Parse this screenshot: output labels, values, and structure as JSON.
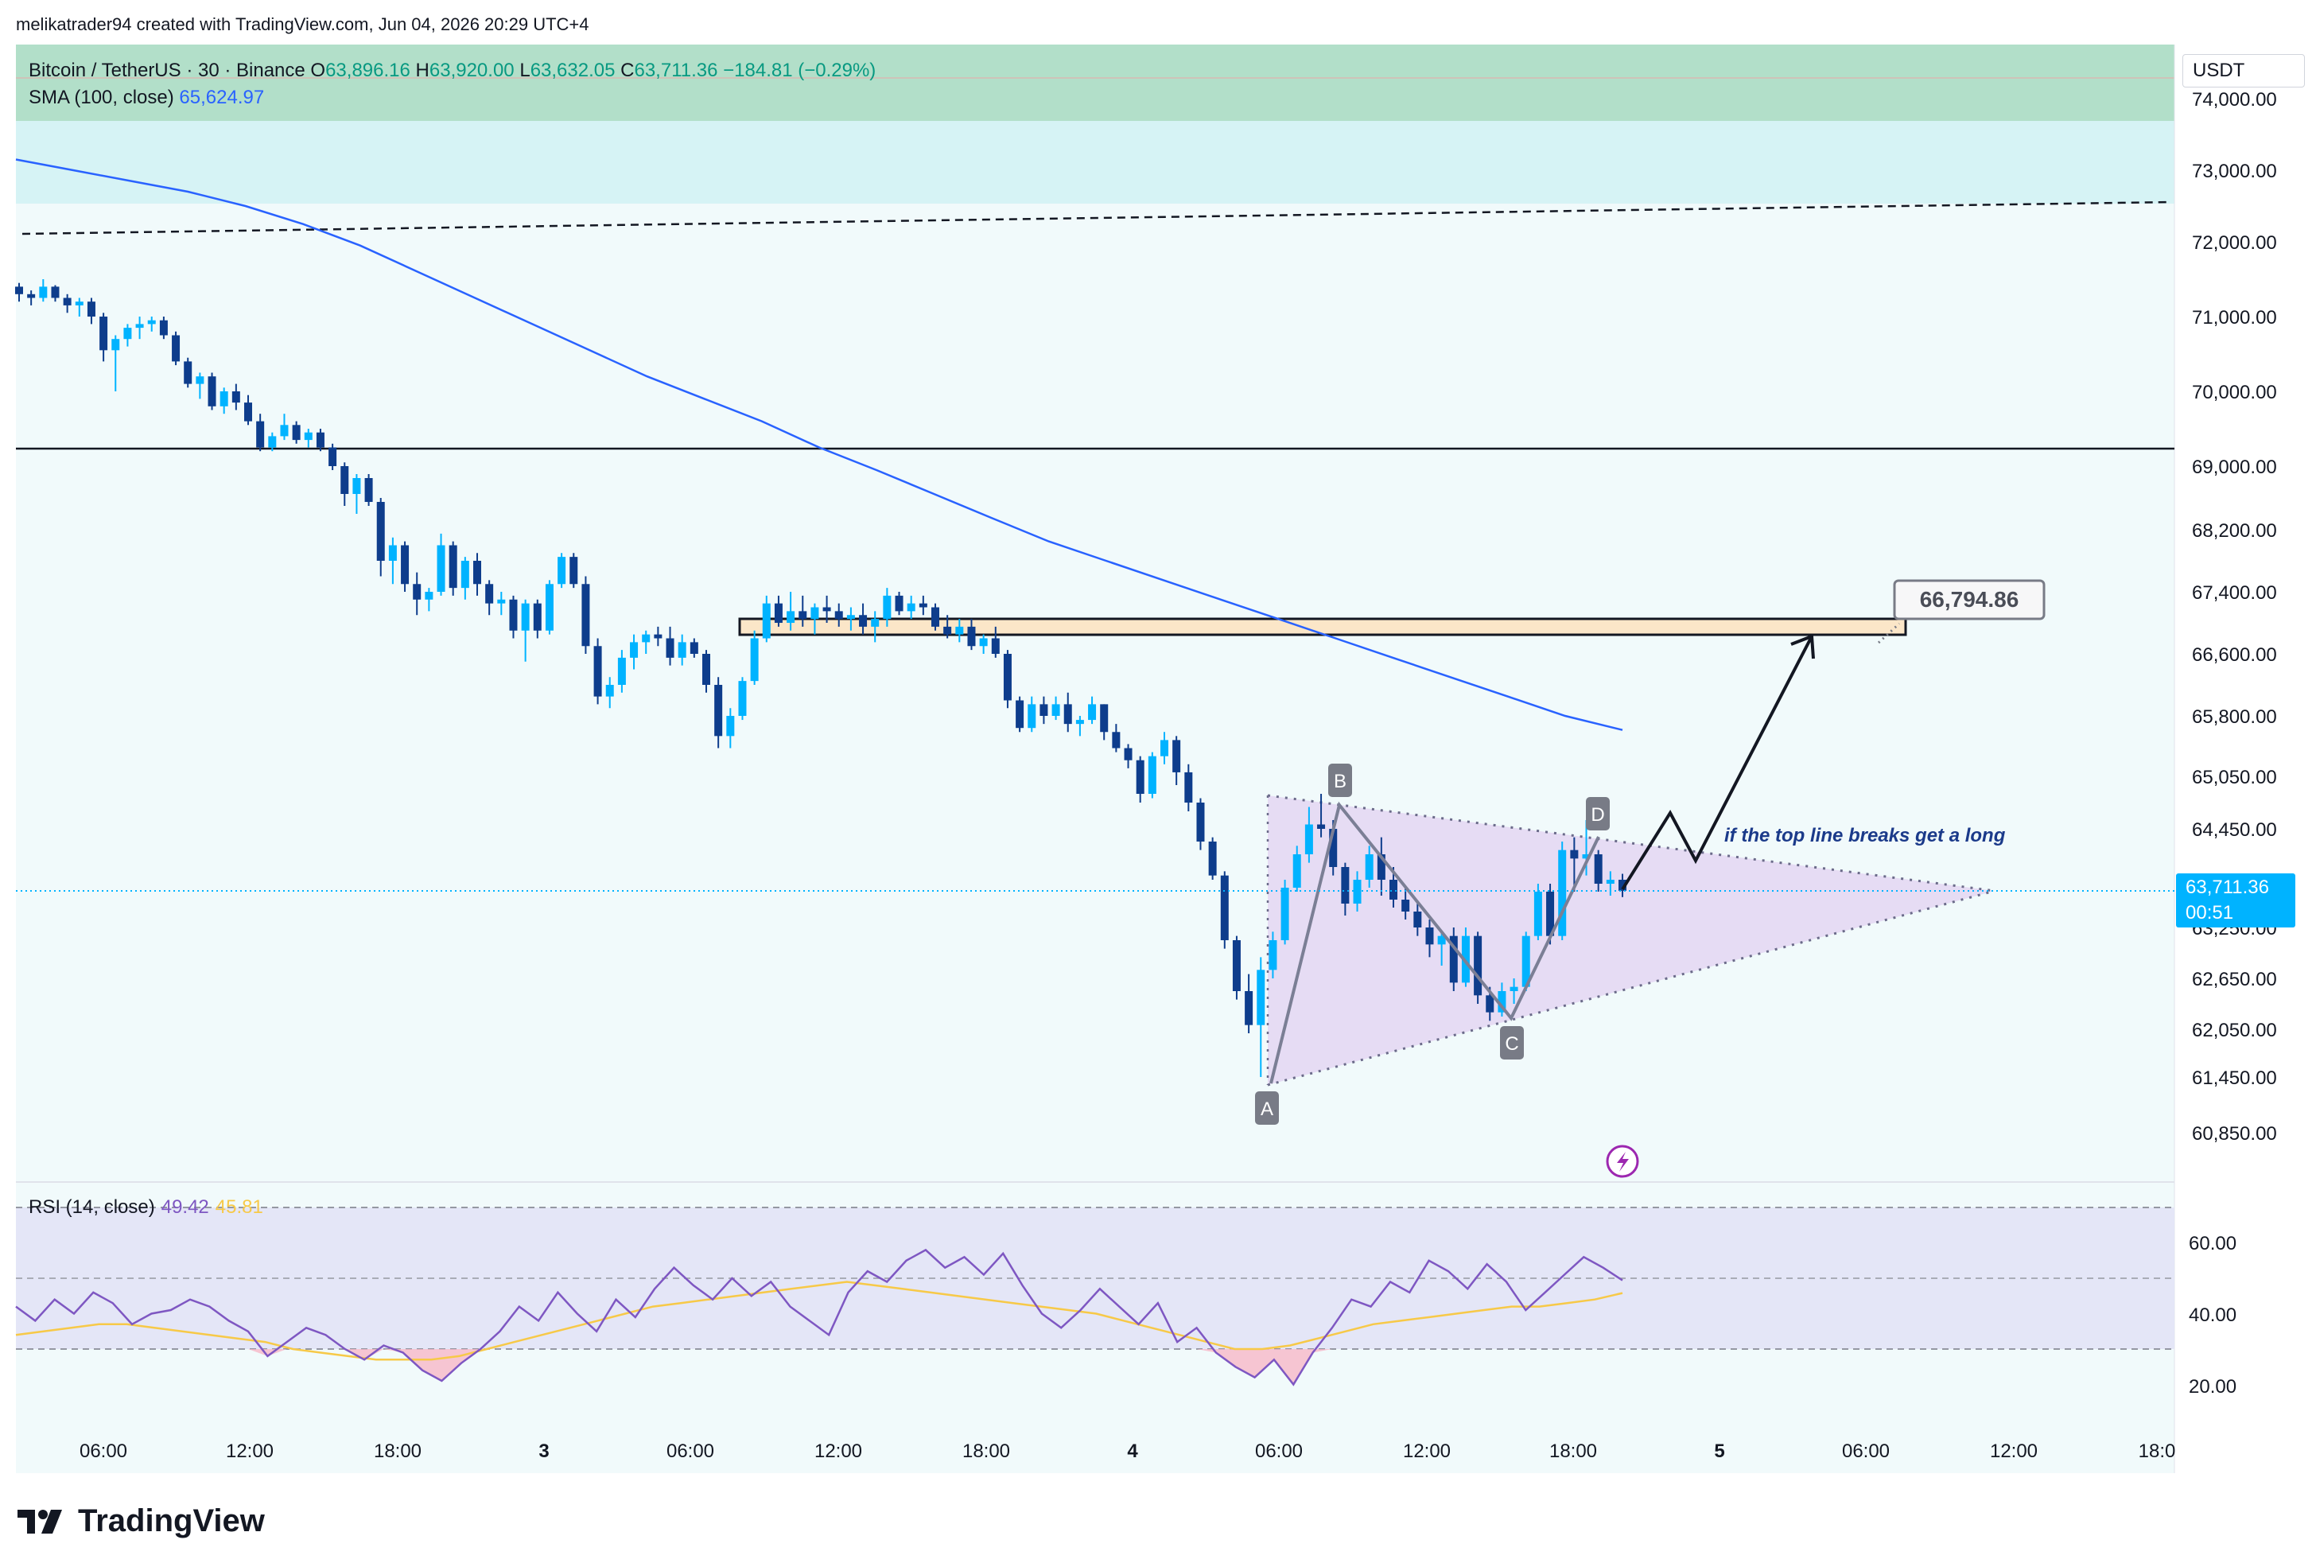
{
  "attribution": "melikatrader94 created with TradingView.com, Jun 04, 2026 20:29 UTC+4",
  "legend": {
    "symbol": "Bitcoin / TetherUS · 30 · Binance",
    "open_label": "O",
    "open": "63,896.16",
    "high_label": "H",
    "high": "63,920.00",
    "low_label": "L",
    "low": "63,632.05",
    "close_label": "C",
    "close": "63,711.36",
    "change": "−184.81 (−0.29%)",
    "sma_label": "SMA (100, close)",
    "sma_value": "65,624.97"
  },
  "currency": "USDT",
  "price_badge": {
    "price": "63,711.36",
    "countdown": "00:51"
  },
  "target_label": "66,794.86",
  "annotation": "if the top line breaks get a long",
  "wave_labels": [
    "A",
    "B",
    "C",
    "D"
  ],
  "rsi_legend": {
    "label": "RSI (14, close)",
    "rsi": "49.42",
    "ma": "45.81"
  },
  "footer": {
    "brand": "TradingView"
  },
  "colors": {
    "bull": "#00b3ff",
    "bear": "#0e3d8c",
    "sma": "#2962ff",
    "rsi": "#7e57c2",
    "rsi_ma": "#f7c948",
    "triangle": "#e4d6f2",
    "zone": "#fbe6c8",
    "top_band": "#b2dfc9",
    "sky_band": "#d6f3f5"
  },
  "chart_data": {
    "type": "candlestick",
    "price_axis_ticks": [
      "74,000.00",
      "73,000.00",
      "72,000.00",
      "71,000.00",
      "70,000.00",
      "69,000.00",
      "68,200.00",
      "67,400.00",
      "66,600.00",
      "65,800.00",
      "65,050.00",
      "64,450.00",
      "63,850.00",
      "63,250.00",
      "62,650.00",
      "62,050.00",
      "61,450.00",
      "60,850.00"
    ],
    "time_axis_ticks": [
      "06:00",
      "12:00",
      "18:00",
      "3",
      "06:00",
      "12:00",
      "18:00",
      "4",
      "06:00",
      "12:00",
      "18:00",
      "5",
      "06:00",
      "12:00",
      "18:0"
    ],
    "rsi_axis_ticks": [
      "60.00",
      "40.00",
      "20.00"
    ],
    "candles": [
      [
        71400,
        71450,
        71200,
        71300
      ],
      [
        71300,
        71350,
        71150,
        71250
      ],
      [
        71250,
        71500,
        71200,
        71400
      ],
      [
        71400,
        71420,
        71200,
        71250
      ],
      [
        71250,
        71300,
        71050,
        71150
      ],
      [
        71150,
        71250,
        71000,
        71200
      ],
      [
        71200,
        71250,
        70900,
        71000
      ],
      [
        71000,
        71050,
        70400,
        70550
      ],
      [
        70550,
        70750,
        70000,
        70700
      ],
      [
        70700,
        70900,
        70600,
        70850
      ],
      [
        70850,
        71000,
        70700,
        70900
      ],
      [
        70900,
        71000,
        70800,
        70950
      ],
      [
        70950,
        71000,
        70700,
        70750
      ],
      [
        70750,
        70800,
        70350,
        70400
      ],
      [
        70400,
        70450,
        70050,
        70100
      ],
      [
        70100,
        70250,
        69900,
        70200
      ],
      [
        70200,
        70250,
        69750,
        69800
      ],
      [
        69800,
        70050,
        69700,
        70000
      ],
      [
        70000,
        70100,
        69750,
        69850
      ],
      [
        69850,
        69950,
        69550,
        69600
      ],
      [
        69600,
        69700,
        69200,
        69250
      ],
      [
        69250,
        69450,
        69200,
        69400
      ],
      [
        69400,
        69700,
        69350,
        69550
      ],
      [
        69550,
        69600,
        69300,
        69350
      ],
      [
        69350,
        69500,
        69250,
        69450
      ],
      [
        69450,
        69500,
        69200,
        69250
      ],
      [
        69250,
        69300,
        68950,
        69000
      ],
      [
        69000,
        69050,
        68500,
        68650
      ],
      [
        68650,
        68900,
        68400,
        68850
      ],
      [
        68850,
        68900,
        68500,
        68550
      ],
      [
        68550,
        68600,
        67600,
        67800
      ],
      [
        67800,
        68100,
        67500,
        68000
      ],
      [
        68000,
        68050,
        67400,
        67500
      ],
      [
        67500,
        67650,
        67100,
        67300
      ],
      [
        67300,
        67450,
        67150,
        67400
      ],
      [
        67400,
        68150,
        67350,
        68000
      ],
      [
        68000,
        68050,
        67350,
        67450
      ],
      [
        67450,
        67850,
        67300,
        67800
      ],
      [
        67800,
        67900,
        67350,
        67500
      ],
      [
        67500,
        67550,
        67100,
        67250
      ],
      [
        67250,
        67400,
        67100,
        67300
      ],
      [
        67300,
        67350,
        66800,
        66900
      ],
      [
        66900,
        67300,
        66500,
        67250
      ],
      [
        67250,
        67300,
        66800,
        66900
      ],
      [
        66900,
        67550,
        66850,
        67500
      ],
      [
        67500,
        67900,
        67450,
        67850
      ],
      [
        67850,
        67900,
        67450,
        67500
      ],
      [
        67500,
        67600,
        66600,
        66700
      ],
      [
        66700,
        66800,
        65950,
        66050
      ],
      [
        66050,
        66300,
        65900,
        66200
      ],
      [
        66200,
        66650,
        66100,
        66550
      ],
      [
        66550,
        66850,
        66400,
        66750
      ],
      [
        66750,
        66900,
        66600,
        66850
      ],
      [
        66850,
        66950,
        66700,
        66800
      ],
      [
        66800,
        66950,
        66450,
        66550
      ],
      [
        66550,
        66850,
        66450,
        66750
      ],
      [
        66750,
        66800,
        66550,
        66600
      ],
      [
        66600,
        66650,
        66100,
        66200
      ],
      [
        66200,
        66300,
        65400,
        65550
      ],
      [
        65550,
        65900,
        65400,
        65800
      ],
      [
        65800,
        66300,
        65750,
        66250
      ],
      [
        66250,
        66900,
        66200,
        66800
      ],
      [
        66800,
        67350,
        66750,
        67250
      ],
      [
        67250,
        67350,
        66950,
        67000
      ],
      [
        67000,
        67400,
        66900,
        67150
      ],
      [
        67150,
        67350,
        66950,
        67050
      ],
      [
        67050,
        67250,
        66850,
        67200
      ],
      [
        67200,
        67350,
        67000,
        67150
      ],
      [
        67150,
        67250,
        66950,
        67050
      ],
      [
        67050,
        67200,
        66900,
        67100
      ],
      [
        67100,
        67250,
        66850,
        66950
      ],
      [
        66950,
        67150,
        66750,
        67050
      ],
      [
        67050,
        67450,
        66950,
        67350
      ],
      [
        67350,
        67400,
        67100,
        67150
      ],
      [
        67150,
        67350,
        67050,
        67250
      ],
      [
        67250,
        67350,
        67100,
        67200
      ],
      [
        67200,
        67250,
        66900,
        66950
      ],
      [
        66950,
        67100,
        66800,
        66850
      ],
      [
        66850,
        67050,
        66750,
        66950
      ],
      [
        66950,
        67050,
        66650,
        66700
      ],
      [
        66700,
        66850,
        66600,
        66800
      ],
      [
        66800,
        66950,
        66550,
        66600
      ],
      [
        66600,
        66650,
        65900,
        66000
      ],
      [
        66000,
        66050,
        65600,
        65650
      ],
      [
        65650,
        66050,
        65600,
        65950
      ],
      [
        65950,
        66050,
        65700,
        65800
      ],
      [
        65800,
        66050,
        65750,
        65950
      ],
      [
        65950,
        66100,
        65600,
        65700
      ],
      [
        65700,
        65800,
        65550,
        65750
      ],
      [
        65750,
        66050,
        65700,
        65950
      ],
      [
        65950,
        65950,
        65500,
        65600
      ],
      [
        65600,
        65700,
        65350,
        65400
      ],
      [
        65400,
        65450,
        65150,
        65250
      ],
      [
        65250,
        65300,
        64750,
        64850
      ],
      [
        64850,
        65350,
        64800,
        65300
      ],
      [
        65300,
        65600,
        65200,
        65500
      ],
      [
        65500,
        65550,
        64950,
        65100
      ],
      [
        65100,
        65200,
        64650,
        64750
      ],
      [
        64750,
        64800,
        64200,
        64300
      ],
      [
        64300,
        64350,
        63850,
        63900
      ],
      [
        63900,
        63950,
        63000,
        63100
      ],
      [
        63100,
        63150,
        62400,
        62500
      ],
      [
        62500,
        62700,
        62000,
        62100
      ],
      [
        62100,
        62900,
        61450,
        62750
      ],
      [
        62750,
        63200,
        62650,
        63100
      ],
      [
        63100,
        63850,
        63050,
        63750
      ],
      [
        63750,
        64250,
        63700,
        64150
      ],
      [
        64150,
        64700,
        64050,
        64500
      ],
      [
        64500,
        64850,
        64350,
        64450
      ],
      [
        64450,
        64550,
        63900,
        64000
      ],
      [
        64000,
        64050,
        63400,
        63550
      ],
      [
        63550,
        63950,
        63450,
        63850
      ],
      [
        63850,
        64250,
        63750,
        64150
      ],
      [
        64150,
        64350,
        63650,
        63850
      ],
      [
        63850,
        64000,
        63500,
        63600
      ],
      [
        63600,
        63750,
        63350,
        63450
      ],
      [
        63450,
        63550,
        63150,
        63250
      ],
      [
        63250,
        63350,
        62900,
        63050
      ],
      [
        63050,
        63200,
        62800,
        63150
      ],
      [
        63150,
        63250,
        62500,
        62600
      ],
      [
        62600,
        63250,
        62550,
        63150
      ],
      [
        63150,
        63200,
        62350,
        62450
      ],
      [
        62450,
        62550,
        62150,
        62250
      ],
      [
        62250,
        62600,
        62200,
        62500
      ],
      [
        62500,
        62650,
        62350,
        62550
      ],
      [
        62550,
        63200,
        62500,
        63150
      ],
      [
        63150,
        63800,
        63100,
        63700
      ],
      [
        63700,
        63800,
        63050,
        63150
      ],
      [
        63150,
        64300,
        63100,
        64200
      ],
      [
        64200,
        64350,
        63700,
        64100
      ],
      [
        64100,
        64550,
        63900,
        64150
      ],
      [
        64150,
        64200,
        63700,
        63800
      ],
      [
        63800,
        63950,
        63650,
        63850
      ],
      [
        63850,
        63920,
        63632,
        63711
      ]
    ],
    "sma": [
      73150,
      73000,
      72850,
      72700,
      72500,
      72250,
      71950,
      71600,
      71250,
      70900,
      70550,
      70200,
      69900,
      69600,
      69250,
      68950,
      68650,
      68350,
      68050,
      67800,
      67550,
      67300,
      67050,
      66800,
      66550,
      66300,
      66050,
      65800,
      65624.97
    ],
    "rsi": [
      42,
      38,
      44,
      40,
      46,
      43,
      37,
      40,
      41,
      44,
      42,
      38,
      35,
      28,
      32,
      36,
      34,
      30,
      27,
      31,
      29,
      24,
      21,
      26,
      30,
      35,
      42,
      38,
      46,
      40,
      35,
      44,
      39,
      47,
      53,
      48,
      44,
      50,
      45,
      49,
      42,
      38,
      34,
      46,
      52,
      49,
      55,
      58,
      53,
      56,
      51,
      57,
      48,
      40,
      36,
      41,
      47,
      42,
      37,
      43,
      32,
      36,
      29,
      25,
      22,
      27,
      20,
      29,
      36,
      44,
      42,
      49,
      46,
      55,
      52,
      47,
      54,
      49,
      41,
      46,
      51,
      56,
      53,
      49.42
    ],
    "rsi_ma": [
      34,
      35,
      36,
      37,
      37,
      36,
      35,
      34,
      33,
      32,
      30,
      29,
      28,
      27,
      27,
      27,
      28,
      30,
      32,
      34,
      36,
      38,
      40,
      42,
      43,
      44,
      45,
      46,
      47,
      48,
      49,
      48,
      47,
      46,
      45,
      44,
      43,
      42,
      41,
      40,
      38,
      36,
      34,
      32,
      30,
      30,
      31,
      33,
      35,
      37,
      38,
      39,
      40,
      41,
      42,
      42,
      43,
      44,
      45.81
    ],
    "rsi_levels": [
      70,
      50,
      30
    ],
    "annotations": [
      "66,794.86",
      "if the top line breaks get a long"
    ]
  }
}
